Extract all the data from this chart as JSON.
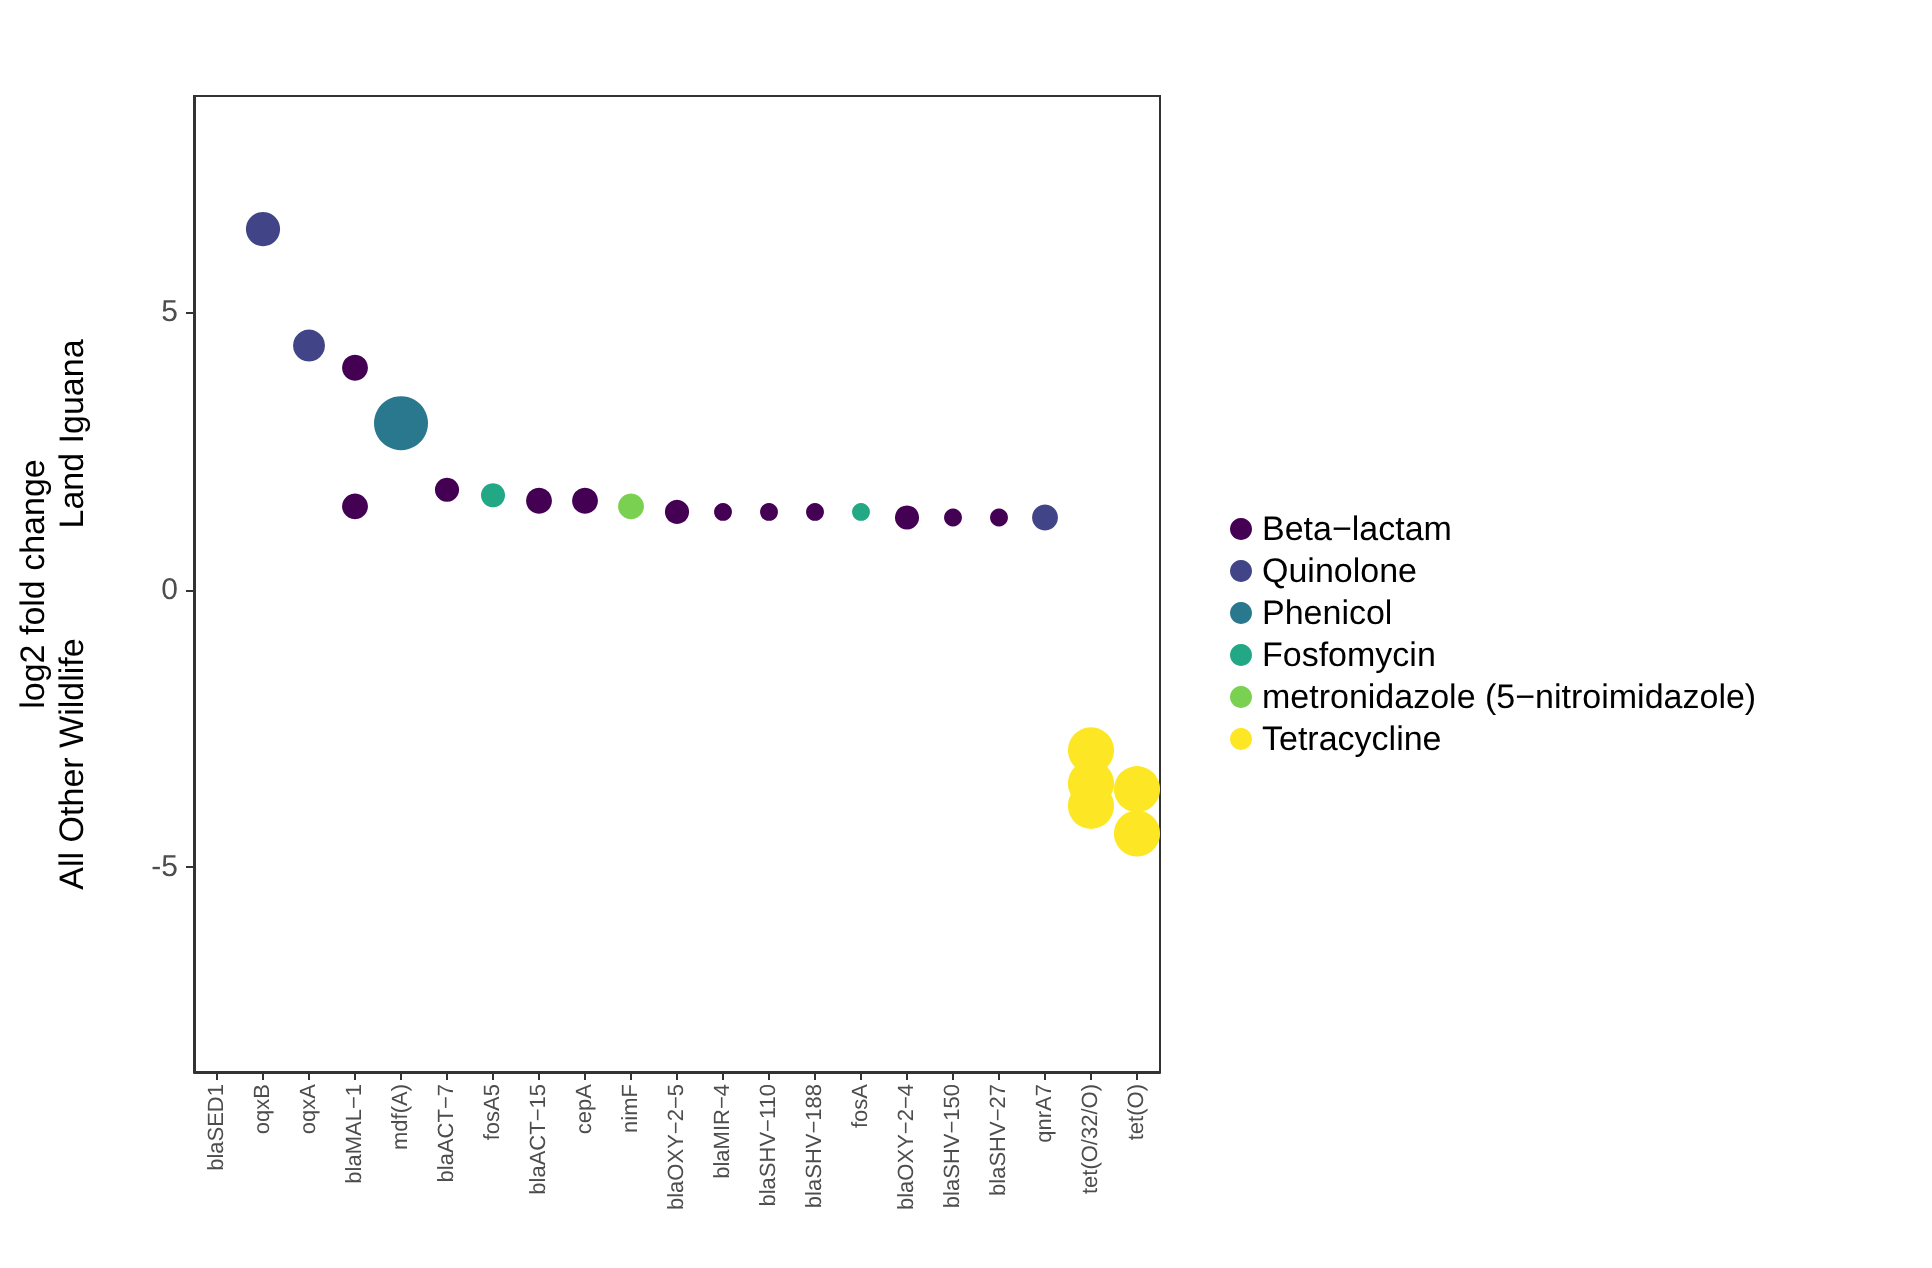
{
  "chart_data": {
    "type": "bubble",
    "ylabel": "log2 fold change",
    "annotations": [
      "Land Iguana",
      "All Other Wildlife"
    ],
    "categories": [
      "blaSED1",
      "oqxB",
      "oqxA",
      "blaMAL−1",
      "mdf(A)",
      "blaACT−7",
      "fosA5",
      "blaACT−15",
      "cepA",
      "nimF",
      "blaOXY−2−5",
      "blaMIR−4",
      "blaSHV−110",
      "blaSHV−188",
      "fosA",
      "blaOXY−2−4",
      "blaSHV−150",
      "blaSHV−27",
      "qnrA7",
      "tet(O/32/O)",
      "tet(O)"
    ],
    "series": [
      {
        "name": "Beta−lactam",
        "color": "#440154",
        "x": [
          "blaMAL−1",
          "blaMAL−1",
          "blaACT−7",
          "blaACT−15",
          "cepA",
          "blaOXY−2−5",
          "blaMIR−4",
          "blaSHV−110",
          "blaSHV−188",
          "blaOXY−2−4",
          "blaSHV−150",
          "blaSHV−27"
        ],
        "values": [
          4.0,
          1.5,
          1.8,
          1.6,
          1.6,
          1.4,
          1.4,
          1.4,
          1.4,
          1.3,
          1.3,
          1.3
        ],
        "sizes": [
          0.23,
          0.23,
          0.2,
          0.23,
          0.23,
          0.2,
          0.11,
          0.11,
          0.11,
          0.2,
          0.11,
          0.11
        ]
      },
      {
        "name": "Quinolone",
        "color": "#414487",
        "x": [
          "oqxB",
          "oqxA",
          "qnrA7"
        ],
        "values": [
          6.5,
          4.4,
          1.3
        ],
        "sizes": [
          0.4,
          0.35,
          0.23
        ]
      },
      {
        "name": "Phenicol",
        "color": "#2a788e",
        "x": [
          "mdf(A)"
        ],
        "values": [
          3.0
        ],
        "sizes": [
          1
        ]
      },
      {
        "name": "Fosfomycin",
        "color": "#22a884",
        "x": [
          "fosA5",
          "fosA"
        ],
        "values": [
          1.7,
          1.4
        ],
        "sizes": [
          0.2,
          0.11
        ]
      },
      {
        "name": "metronidazole (5−nitroimidazole)",
        "color": "#7ad151",
        "x": [
          "nimF"
        ],
        "values": [
          1.5
        ],
        "sizes": [
          0.23
        ]
      },
      {
        "name": "Tetracycline",
        "color": "#fde725",
        "x": [
          "tet(O/32/O)",
          "tet(O/32/O)",
          "tet(O/32/O)",
          "tet(O)",
          "tet(O)"
        ],
        "values": [
          -2.9,
          -3.5,
          -3.9,
          -3.6,
          -4.4
        ],
        "sizes": [
          0.73,
          0.73,
          0.73,
          0.73,
          0.73
        ]
      }
    ],
    "ylim": [
      -8.7,
      8.9
    ],
    "yticks": [
      -5,
      0,
      5
    ],
    "grid": false,
    "legend": "right"
  }
}
